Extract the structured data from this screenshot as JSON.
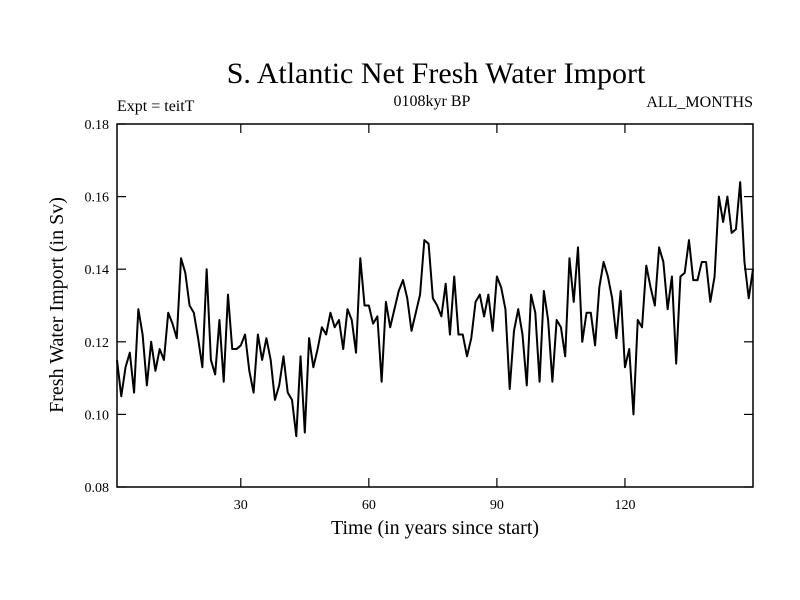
{
  "chart_data": {
    "type": "line",
    "title": "S. Atlantic Net Fresh Water Import",
    "subtitle_left": "Expt = teitT",
    "subtitle_center": "0108kyr BP",
    "subtitle_right": "ALL_MONTHS",
    "xlabel": "Time (in years since start)",
    "ylabel": "Fresh Water Import (in Sv)",
    "xlim": [
      1,
      150
    ],
    "ylim": [
      0.08,
      0.18
    ],
    "xticks": [
      30,
      60,
      90,
      120
    ],
    "xtick_labels": [
      "30",
      "60",
      "90",
      "120"
    ],
    "yticks": [
      0.08,
      0.1,
      0.12,
      0.14,
      0.16,
      0.18
    ],
    "ytick_labels": [
      "0.08",
      "0.10",
      "0.12",
      "0.14",
      "0.16",
      "0.18"
    ],
    "series": [
      {
        "name": "Fresh Water Import",
        "x_start": 1,
        "x_step": 1,
        "values": [
          0.115,
          0.105,
          0.113,
          0.117,
          0.106,
          0.129,
          0.122,
          0.108,
          0.12,
          0.112,
          0.118,
          0.115,
          0.128,
          0.125,
          0.121,
          0.143,
          0.139,
          0.13,
          0.128,
          0.121,
          0.113,
          0.14,
          0.115,
          0.111,
          0.126,
          0.109,
          0.133,
          0.118,
          0.118,
          0.119,
          0.122,
          0.112,
          0.106,
          0.122,
          0.115,
          0.121,
          0.115,
          0.104,
          0.108,
          0.116,
          0.106,
          0.104,
          0.094,
          0.116,
          0.095,
          0.121,
          0.113,
          0.118,
          0.124,
          0.122,
          0.128,
          0.124,
          0.126,
          0.118,
          0.129,
          0.126,
          0.117,
          0.143,
          0.13,
          0.13,
          0.125,
          0.127,
          0.109,
          0.131,
          0.124,
          0.129,
          0.134,
          0.137,
          0.132,
          0.123,
          0.128,
          0.133,
          0.148,
          0.147,
          0.132,
          0.13,
          0.127,
          0.136,
          0.122,
          0.138,
          0.122,
          0.122,
          0.116,
          0.121,
          0.131,
          0.133,
          0.127,
          0.133,
          0.123,
          0.138,
          0.135,
          0.129,
          0.107,
          0.123,
          0.129,
          0.122,
          0.108,
          0.133,
          0.128,
          0.109,
          0.134,
          0.126,
          0.109,
          0.126,
          0.124,
          0.116,
          0.143,
          0.131,
          0.146,
          0.12,
          0.128,
          0.128,
          0.119,
          0.135,
          0.142,
          0.138,
          0.132,
          0.121,
          0.134,
          0.113,
          0.118,
          0.1,
          0.126,
          0.124,
          0.141,
          0.135,
          0.13,
          0.146,
          0.142,
          0.129,
          0.138,
          0.114,
          0.138,
          0.139,
          0.148,
          0.137,
          0.137,
          0.142,
          0.142,
          0.131,
          0.138,
          0.16,
          0.153,
          0.16,
          0.15,
          0.151,
          0.164,
          0.142,
          0.132,
          0.14
        ]
      }
    ],
    "line_color": "#000000",
    "grid": false
  }
}
